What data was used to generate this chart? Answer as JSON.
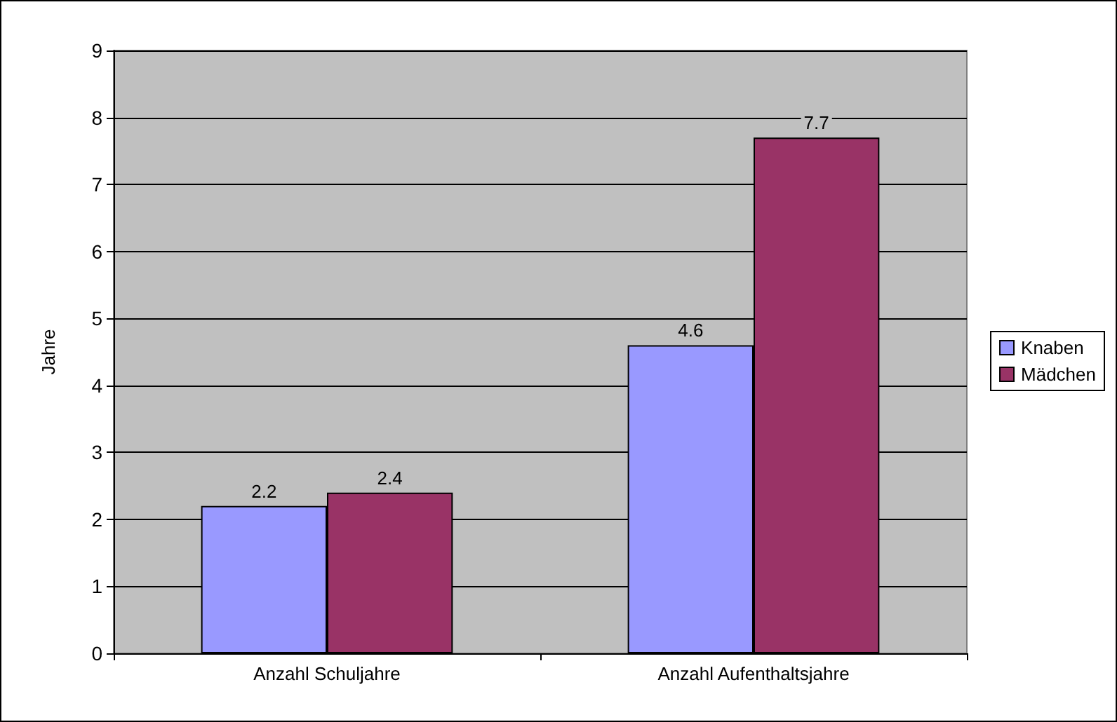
{
  "chart_data": {
    "type": "bar",
    "ylabel": "Jahre",
    "categories": [
      "Anzahl Schuljahre",
      "Anzahl Aufenthaltsjahre"
    ],
    "series": [
      {
        "name": "Knaben",
        "color": "#9999ff",
        "values": [
          2.2,
          4.6
        ]
      },
      {
        "name": "Mädchen",
        "color": "#993366",
        "values": [
          2.4,
          7.7
        ]
      }
    ],
    "ylim": [
      0,
      9
    ],
    "yticks": [
      0,
      1,
      2,
      3,
      4,
      5,
      6,
      7,
      8,
      9
    ],
    "grid": "y",
    "legend": "right",
    "data_labels": true
  }
}
